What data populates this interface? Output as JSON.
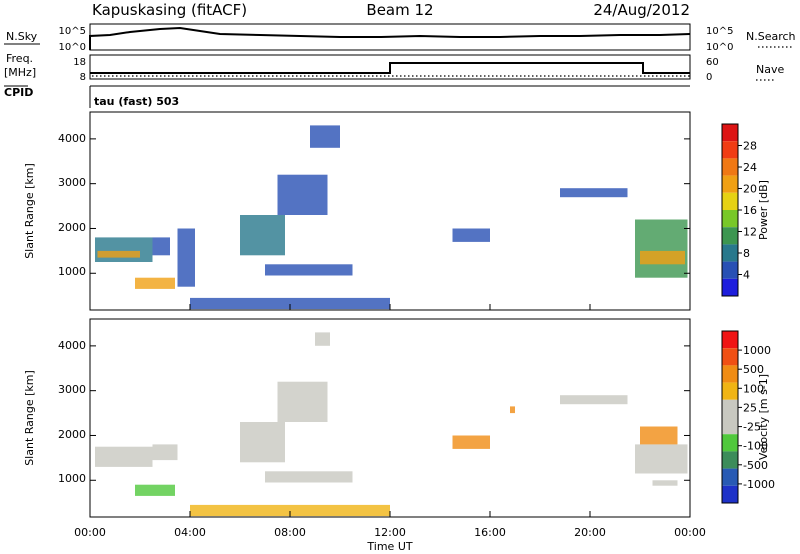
{
  "header": {
    "station": "Kapuskasing (fitACF)",
    "beam": "Beam 12",
    "date": "24/Aug/2012"
  },
  "strips": {
    "nsky_label": "N.Sky",
    "nsearch_label": "N.Search",
    "nsky_ticks": [
      "10^5",
      "10^0"
    ],
    "nsearch_ticks": [
      "10^5",
      "10^0"
    ],
    "freq_label_1": "Freq.",
    "freq_label_2": "[MHz]",
    "freq_ticks": [
      "18",
      "8"
    ],
    "nave_label": "Nave",
    "nave_ticks": [
      "60",
      "0"
    ],
    "cpid_label": "CPID",
    "mode_label": "tau (fast) 503"
  },
  "colors": {
    "power_scale": [
      "#1e1edc",
      "#2850b4",
      "#28788c",
      "#3c9650",
      "#78c828",
      "#e6d214",
      "#f0a014",
      "#f07814",
      "#f03c14",
      "#dc1414"
    ],
    "velocity_scale": [
      "#1e32c8",
      "#285ab4",
      "#3c8c5a",
      "#50c83c",
      "#c8c8c0",
      "#c8c8c0",
      "#f0b414",
      "#f08c14",
      "#f05014",
      "#f01414"
    ]
  },
  "chart_data": [
    {
      "type": "heatmap",
      "panel": "power",
      "ylabel": "Slant Range [km]",
      "xlabel": "",
      "xlim": [
        0,
        24
      ],
      "ylim": [
        180,
        4600
      ],
      "yticks": [
        "1000",
        "2000",
        "3000",
        "4000"
      ],
      "grid": false,
      "colorbar": {
        "label": "Power [dB]",
        "range": [
          0,
          32
        ],
        "ticks": [
          "28",
          "24",
          "20",
          "16",
          "12",
          "8",
          "4"
        ]
      },
      "regions": [
        {
          "t": [
            0.2,
            2.5
          ],
          "r": [
            1250,
            1800
          ],
          "level": 9
        },
        {
          "t": [
            0.3,
            2.0
          ],
          "r": [
            1350,
            1500
          ],
          "level": 22
        },
        {
          "t": [
            1.8,
            3.4
          ],
          "r": [
            650,
            900
          ],
          "level": 20
        },
        {
          "t": [
            2.5,
            3.2
          ],
          "r": [
            1400,
            1800
          ],
          "level": 6
        },
        {
          "t": [
            3.5,
            4.2
          ],
          "r": [
            700,
            2000
          ],
          "level": 6
        },
        {
          "t": [
            6.0,
            7.8
          ],
          "r": [
            1400,
            2300
          ],
          "level": 9
        },
        {
          "t": [
            7.5,
            9.5
          ],
          "r": [
            2300,
            3200
          ],
          "level": 5
        },
        {
          "t": [
            8.8,
            10.0
          ],
          "r": [
            3800,
            4300
          ],
          "level": 4
        },
        {
          "t": [
            7.0,
            10.5
          ],
          "r": [
            950,
            1200
          ],
          "level": 6
        },
        {
          "t": [
            4.0,
            12.0
          ],
          "r": [
            200,
            450
          ],
          "level": 6
        },
        {
          "t": [
            14.5,
            16.0
          ],
          "r": [
            1700,
            2000
          ],
          "level": 6
        },
        {
          "t": [
            18.8,
            21.5
          ],
          "r": [
            2700,
            2900
          ],
          "level": 5
        },
        {
          "t": [
            21.8,
            23.9
          ],
          "r": [
            900,
            2200
          ],
          "level": 10
        },
        {
          "t": [
            22.0,
            23.8
          ],
          "r": [
            1200,
            1500
          ],
          "level": 21
        }
      ]
    },
    {
      "type": "heatmap",
      "panel": "velocity",
      "ylabel": "Slant Range [km]",
      "xlabel": "Time UT",
      "xlim": [
        0,
        24
      ],
      "ylim": [
        180,
        4600
      ],
      "xticks": [
        "00:00",
        "04:00",
        "08:00",
        "12:00",
        "16:00",
        "20:00",
        "00:00"
      ],
      "yticks": [
        "1000",
        "2000",
        "3000",
        "4000"
      ],
      "grid": false,
      "colorbar": {
        "label": "Velocity [m s-1]",
        "ticks": [
          "1000",
          "500",
          "100",
          "25",
          "-25",
          "-100",
          "-500",
          "-1000"
        ]
      },
      "regions": [
        {
          "t": [
            0.2,
            2.5
          ],
          "r": [
            1300,
            1750
          ],
          "level": 4
        },
        {
          "t": [
            1.8,
            3.4
          ],
          "r": [
            650,
            900
          ],
          "level": 3
        },
        {
          "t": [
            2.5,
            3.5
          ],
          "r": [
            1450,
            1800
          ],
          "level": 4
        },
        {
          "t": [
            6.0,
            7.8
          ],
          "r": [
            1400,
            2300
          ],
          "level": 4
        },
        {
          "t": [
            7.5,
            9.5
          ],
          "r": [
            2300,
            3200
          ],
          "level": 5
        },
        {
          "t": [
            9.0,
            9.6
          ],
          "r": [
            4000,
            4300
          ],
          "level": 5
        },
        {
          "t": [
            7.0,
            10.5
          ],
          "r": [
            950,
            1200
          ],
          "level": 5
        },
        {
          "t": [
            4.0,
            12.0
          ],
          "r": [
            200,
            450
          ],
          "level": 6
        },
        {
          "t": [
            14.5,
            16.0
          ],
          "r": [
            1700,
            2000
          ],
          "level": 7
        },
        {
          "t": [
            16.8,
            17.0
          ],
          "r": [
            2500,
            2650
          ],
          "level": 7
        },
        {
          "t": [
            18.8,
            21.5
          ],
          "r": [
            2700,
            2900
          ],
          "level": 5
        },
        {
          "t": [
            21.8,
            23.9
          ],
          "r": [
            1150,
            1800
          ],
          "level": 4
        },
        {
          "t": [
            22.0,
            23.5
          ],
          "r": [
            1800,
            2200
          ],
          "level": 7
        },
        {
          "t": [
            22.5,
            23.5
          ],
          "r": [
            880,
            1000
          ],
          "level": 4
        }
      ]
    }
  ]
}
